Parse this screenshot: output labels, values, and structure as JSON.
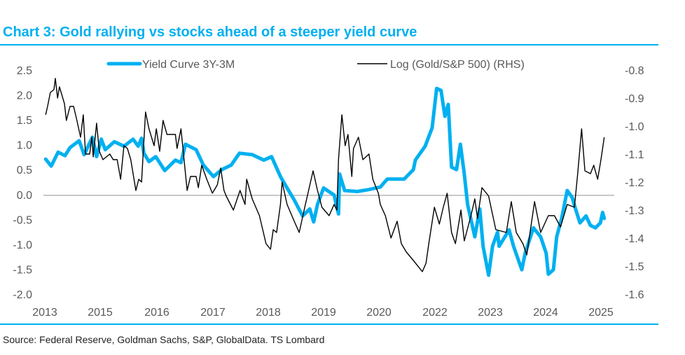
{
  "chart_data": {
    "type": "line",
    "title": "Chart 3: Gold rallying vs stocks ahead of a steeper yield curve",
    "source": "Source: Federal Reserve, Goldman Sachs, S&P, GlobalData. TS Lombard",
    "x_tick_labels": [
      "2013",
      "2015",
      "2016",
      "2017",
      "2018",
      "2019",
      "2020",
      "2022",
      "2023",
      "2024",
      "2025"
    ],
    "y_left": {
      "ylim": [
        -2.0,
        2.5
      ],
      "ticks": [
        "2.5",
        "2.0",
        "1.5",
        "1.0",
        "0.5",
        "0.0",
        "-0.5",
        "-1.0",
        "-1.5",
        "-2.0"
      ]
    },
    "y_right": {
      "ylim": [
        -1.6,
        -0.8
      ],
      "ticks": [
        "-0.8",
        "-0.9",
        "-1.0",
        "-1.1",
        "-1.2",
        "-1.3",
        "-1.4",
        "-1.5",
        "-1.6"
      ]
    },
    "grid": false,
    "zero_line": true,
    "legend_position": "top",
    "series": [
      {
        "name": "Yield Curve 3Y-3M",
        "axis": "left",
        "color": "#00b0f0",
        "points": [
          [
            2013.03,
            0.71
          ],
          [
            2013.23,
            0.57
          ],
          [
            2013.48,
            0.85
          ],
          [
            2013.73,
            0.78
          ],
          [
            2013.91,
            0.94
          ],
          [
            2014.24,
            1.08
          ],
          [
            2014.42,
            0.8
          ],
          [
            2014.72,
            1.15
          ],
          [
            2014.87,
            0.76
          ],
          [
            2015.02,
            1.11
          ],
          [
            2015.09,
            0.9
          ],
          [
            2015.25,
            1.06
          ],
          [
            2015.42,
            0.97
          ],
          [
            2015.58,
            1.11
          ],
          [
            2015.67,
            0.97
          ],
          [
            2015.73,
            1.13
          ],
          [
            2015.77,
            0.83
          ],
          [
            2015.86,
            0.66
          ],
          [
            2015.98,
            0.76
          ],
          [
            2016.14,
            0.48
          ],
          [
            2016.33,
            0.69
          ],
          [
            2016.43,
            0.64
          ],
          [
            2016.51,
            1.01
          ],
          [
            2016.7,
            0.9
          ],
          [
            2016.83,
            0.59
          ],
          [
            2017.01,
            0.36
          ],
          [
            2017.16,
            0.5
          ],
          [
            2017.33,
            0.59
          ],
          [
            2017.48,
            0.83
          ],
          [
            2017.71,
            0.8
          ],
          [
            2017.92,
            0.69
          ],
          [
            2018.06,
            0.76
          ],
          [
            2018.22,
            0.36
          ],
          [
            2018.34,
            0.13
          ],
          [
            2018.47,
            -0.11
          ],
          [
            2018.62,
            -0.43
          ],
          [
            2018.75,
            -0.29
          ],
          [
            2018.82,
            -0.55
          ],
          [
            2018.89,
            -0.2
          ],
          [
            2019.0,
            0.13
          ],
          [
            2019.19,
            -0.01
          ],
          [
            2019.27,
            -0.39
          ],
          [
            2019.29,
            0.41
          ],
          [
            2019.38,
            0.08
          ],
          [
            2019.61,
            0.06
          ],
          [
            2019.82,
            0.1
          ],
          [
            2020.05,
            0.15
          ],
          [
            2020.3,
            0.31
          ],
          [
            2020.9,
            0.31
          ],
          [
            2021.23,
            0.5
          ],
          [
            2021.3,
            0.69
          ],
          [
            2021.65,
            0.97
          ],
          [
            2021.9,
            1.34
          ],
          [
            2022.03,
            2.13
          ],
          [
            2022.11,
            2.09
          ],
          [
            2022.18,
            1.57
          ],
          [
            2022.24,
            1.81
          ],
          [
            2022.3,
            0.55
          ],
          [
            2022.39,
            0.5
          ],
          [
            2022.46,
            1.01
          ],
          [
            2022.53,
            0.41
          ],
          [
            2022.59,
            -0.2
          ],
          [
            2022.72,
            -0.85
          ],
          [
            2022.81,
            -0.29
          ],
          [
            2022.87,
            -1.04
          ],
          [
            2022.97,
            -1.62
          ],
          [
            2023.04,
            -1.04
          ],
          [
            2023.13,
            -0.76
          ],
          [
            2023.16,
            -1.04
          ],
          [
            2023.34,
            -0.71
          ],
          [
            2023.42,
            -1.04
          ],
          [
            2023.57,
            -1.51
          ],
          [
            2023.63,
            -1.18
          ],
          [
            2023.78,
            -0.67
          ],
          [
            2023.91,
            -0.85
          ],
          [
            2024.01,
            -1.18
          ],
          [
            2024.05,
            -1.6
          ],
          [
            2024.14,
            -1.51
          ],
          [
            2024.2,
            -0.85
          ],
          [
            2024.29,
            -0.48
          ],
          [
            2024.39,
            0.08
          ],
          [
            2024.48,
            -0.06
          ],
          [
            2024.54,
            -0.29
          ],
          [
            2024.62,
            -0.57
          ],
          [
            2024.73,
            -0.43
          ],
          [
            2024.81,
            -0.62
          ],
          [
            2024.9,
            -0.67
          ],
          [
            2024.99,
            -0.57
          ],
          [
            2025.03,
            -0.36
          ],
          [
            2025.06,
            -0.48
          ]
        ]
      },
      {
        "name": "Log (Gold/S&P 500) (RHS)",
        "axis": "right",
        "color": "#000000",
        "points": [
          [
            2013.03,
            -0.96
          ],
          [
            2013.1,
            -0.93
          ],
          [
            2013.2,
            -0.88
          ],
          [
            2013.33,
            -0.87
          ],
          [
            2013.38,
            -0.83
          ],
          [
            2013.46,
            -0.9
          ],
          [
            2013.53,
            -0.86
          ],
          [
            2013.71,
            -0.92
          ],
          [
            2013.78,
            -0.98
          ],
          [
            2013.91,
            -0.93
          ],
          [
            2014.04,
            -0.93
          ],
          [
            2014.16,
            -0.98
          ],
          [
            2014.29,
            -1.04
          ],
          [
            2014.39,
            -0.96
          ],
          [
            2014.47,
            -1.1
          ],
          [
            2014.62,
            -1.1
          ],
          [
            2014.7,
            -1.04
          ],
          [
            2014.75,
            -1.11
          ],
          [
            2014.87,
            -0.99
          ],
          [
            2014.97,
            -1.09
          ],
          [
            2015.05,
            -1.12
          ],
          [
            2015.17,
            -1.1
          ],
          [
            2015.23,
            -1.12
          ],
          [
            2015.3,
            -1.12
          ],
          [
            2015.36,
            -1.19
          ],
          [
            2015.42,
            -1.07
          ],
          [
            2015.48,
            -1.08
          ],
          [
            2015.54,
            -1.12
          ],
          [
            2015.63,
            -1.23
          ],
          [
            2015.68,
            -1.19
          ],
          [
            2015.73,
            -1.2
          ],
          [
            2015.8,
            -0.95
          ],
          [
            2015.86,
            -1.01
          ],
          [
            2015.95,
            -1.07
          ],
          [
            2015.99,
            -1.01
          ],
          [
            2016.05,
            -1.09
          ],
          [
            2016.11,
            -0.98
          ],
          [
            2016.18,
            -1.03
          ],
          [
            2016.29,
            -1.03
          ],
          [
            2016.33,
            -1.03
          ],
          [
            2016.36,
            -1.08
          ],
          [
            2016.43,
            -1.01
          ],
          [
            2016.54,
            -1.23
          ],
          [
            2016.6,
            -1.18
          ],
          [
            2016.7,
            -1.18
          ],
          [
            2016.74,
            -1.22
          ],
          [
            2016.8,
            -1.14
          ],
          [
            2016.89,
            -1.19
          ],
          [
            2016.99,
            -1.24
          ],
          [
            2017.08,
            -1.21
          ],
          [
            2017.14,
            -1.15
          ],
          [
            2017.2,
            -1.23
          ],
          [
            2017.24,
            -1.25
          ],
          [
            2017.37,
            -1.3
          ],
          [
            2017.49,
            -1.23
          ],
          [
            2017.58,
            -1.28
          ],
          [
            2017.61,
            -1.19
          ],
          [
            2017.71,
            -1.26
          ],
          [
            2017.84,
            -1.32
          ],
          [
            2017.96,
            -1.42
          ],
          [
            2018.04,
            -1.44
          ],
          [
            2018.09,
            -1.37
          ],
          [
            2018.15,
            -1.38
          ],
          [
            2018.22,
            -1.28
          ],
          [
            2018.25,
            -1.2
          ],
          [
            2018.34,
            -1.28
          ],
          [
            2018.47,
            -1.34
          ],
          [
            2018.56,
            -1.38
          ],
          [
            2018.66,
            -1.29
          ],
          [
            2018.81,
            -1.16
          ],
          [
            2018.89,
            -1.23
          ],
          [
            2018.97,
            -1.29
          ],
          [
            2019.1,
            -1.32
          ],
          [
            2019.19,
            -1.28
          ],
          [
            2019.24,
            -1.3
          ],
          [
            2019.27,
            -1.12
          ],
          [
            2019.33,
            -0.96
          ],
          [
            2019.39,
            -1.07
          ],
          [
            2019.44,
            -1.03
          ],
          [
            2019.51,
            -1.18
          ],
          [
            2019.54,
            -1.08
          ],
          [
            2019.63,
            -1.04
          ],
          [
            2019.71,
            -1.12
          ],
          [
            2019.82,
            -1.1
          ],
          [
            2019.89,
            -1.19
          ],
          [
            2019.99,
            -1.24
          ],
          [
            2020.05,
            -1.28
          ],
          [
            2020.23,
            -1.32
          ],
          [
            2020.43,
            -1.4
          ],
          [
            2020.65,
            -1.34
          ],
          [
            2020.8,
            -1.42
          ],
          [
            2020.98,
            -1.45
          ],
          [
            2021.23,
            -1.48
          ],
          [
            2021.55,
            -1.52
          ],
          [
            2021.68,
            -1.49
          ],
          [
            2021.78,
            -1.42
          ],
          [
            2021.98,
            -1.29
          ],
          [
            2022.08,
            -1.35
          ],
          [
            2022.15,
            -1.29
          ],
          [
            2022.22,
            -1.24
          ],
          [
            2022.3,
            -1.38
          ],
          [
            2022.37,
            -1.42
          ],
          [
            2022.47,
            -1.3
          ],
          [
            2022.53,
            -1.41
          ],
          [
            2022.65,
            -1.32
          ],
          [
            2022.72,
            -1.26
          ],
          [
            2022.77,
            -1.33
          ],
          [
            2022.85,
            -1.22
          ],
          [
            2022.97,
            -1.25
          ],
          [
            2023.1,
            -1.37
          ],
          [
            2023.29,
            -1.38
          ],
          [
            2023.38,
            -1.27
          ],
          [
            2023.47,
            -1.38
          ],
          [
            2023.59,
            -1.42
          ],
          [
            2023.66,
            -1.46
          ],
          [
            2023.8,
            -1.27
          ],
          [
            2023.91,
            -1.38
          ],
          [
            2024.05,
            -1.32
          ],
          [
            2024.16,
            -1.32
          ],
          [
            2024.27,
            -1.36
          ],
          [
            2024.39,
            -1.28
          ],
          [
            2024.52,
            -1.29
          ],
          [
            2024.58,
            -1.17
          ],
          [
            2024.65,
            -1.01
          ],
          [
            2024.71,
            -1.16
          ],
          [
            2024.81,
            -1.17
          ],
          [
            2024.87,
            -1.14
          ],
          [
            2024.94,
            -1.19
          ],
          [
            2025.0,
            -1.12
          ],
          [
            2025.06,
            -1.04
          ]
        ]
      }
    ]
  }
}
